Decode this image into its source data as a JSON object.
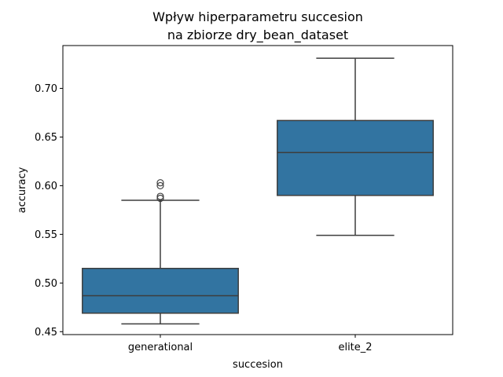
{
  "chart_data": {
    "type": "box",
    "title": [
      "Wpływ hiperparametru succesion",
      "na zbiorze dry_bean_dataset"
    ],
    "xlabel": "succesion",
    "ylabel": "accuracy",
    "categories": [
      "generational",
      "elite_2"
    ],
    "ylim": [
      0.447,
      0.744
    ],
    "yticks": [
      0.45,
      0.5,
      0.55,
      0.6,
      0.65,
      0.7
    ],
    "ytick_labels": [
      "0.45",
      "0.50",
      "0.55",
      "0.60",
      "0.65",
      "0.70"
    ],
    "grid": false,
    "box_color": "#3274a1",
    "line_color": "#3d3d3d",
    "boxes": [
      {
        "category": "generational",
        "whisker_low": 0.458,
        "q1": 0.469,
        "median": 0.487,
        "q3": 0.515,
        "whisker_high": 0.585,
        "outliers": [
          0.587,
          0.589,
          0.6,
          0.603
        ]
      },
      {
        "category": "elite_2",
        "whisker_low": 0.549,
        "q1": 0.59,
        "median": 0.634,
        "q3": 0.667,
        "whisker_high": 0.731,
        "outliers": []
      }
    ]
  }
}
